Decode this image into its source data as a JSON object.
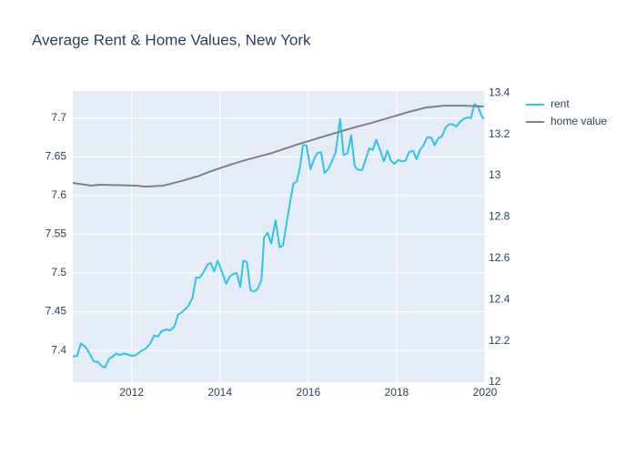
{
  "chart_data": {
    "type": "line",
    "title": "Average Rent & Home Values, New York",
    "xlim": [
      2010.67,
      2020
    ],
    "xticks": [
      2012,
      2014,
      2016,
      2018,
      2020
    ],
    "ylim": [
      7.359,
      7.735
    ],
    "yticks": [
      7.4,
      7.45,
      7.5,
      7.55,
      7.6,
      7.65,
      7.7
    ],
    "y2lim": [
      12,
      13.41
    ],
    "y2ticks": [
      12,
      12.2,
      12.4,
      12.6,
      12.8,
      13,
      13.2,
      13.4
    ],
    "grid": true,
    "legend": "top-right",
    "series": [
      {
        "name": "rent",
        "color": "#2ec4ea",
        "x": [
          2010.67,
          2010.77,
          2010.85,
          2010.95,
          2011.03,
          2011.14,
          2011.24,
          2011.32,
          2011.4,
          2011.49,
          2011.57,
          2011.65,
          2011.73,
          2011.82,
          2011.9,
          2012.0,
          2012.1,
          2012.21,
          2012.31,
          2012.41,
          2012.51,
          2012.6,
          2012.68,
          2012.78,
          2012.88,
          2012.97,
          2013.05,
          2013.13,
          2013.21,
          2013.29,
          2013.38,
          2013.46,
          2013.54,
          2013.62,
          2013.72,
          2013.79,
          2013.87,
          2013.95,
          2014.03,
          2014.14,
          2014.22,
          2014.3,
          2014.38,
          2014.46,
          2014.53,
          2014.61,
          2014.69,
          2014.77,
          2014.85,
          2014.94,
          2015.0,
          2015.08,
          2015.16,
          2015.26,
          2015.35,
          2015.43,
          2015.51,
          2015.59,
          2015.66,
          2015.74,
          2015.82,
          2015.88,
          2015.96,
          2016.05,
          2016.13,
          2016.21,
          2016.29,
          2016.37,
          2016.46,
          2016.54,
          2016.62,
          2016.72,
          2016.8,
          2016.89,
          2016.97,
          2017.05,
          2017.13,
          2017.22,
          2017.3,
          2017.38,
          2017.46,
          2017.54,
          2017.63,
          2017.71,
          2017.79,
          2017.87,
          2017.95,
          2018.04,
          2018.12,
          2018.2,
          2018.28,
          2018.37,
          2018.45,
          2018.53,
          2018.61,
          2018.69,
          2018.78,
          2018.86,
          2018.94,
          2019.02,
          2019.1,
          2019.19,
          2019.27,
          2019.35,
          2019.43,
          2019.52,
          2019.6,
          2019.68,
          2019.76,
          2019.84,
          2019.93,
          2019.97
        ],
        "values": [
          7.392,
          7.393,
          7.409,
          7.405,
          7.398,
          7.386,
          7.385,
          7.38,
          7.378,
          7.389,
          7.392,
          7.396,
          7.394,
          7.396,
          7.395,
          7.393,
          7.394,
          7.399,
          7.402,
          7.408,
          7.419,
          7.418,
          7.425,
          7.427,
          7.426,
          7.431,
          7.446,
          7.449,
          7.453,
          7.458,
          7.468,
          7.494,
          7.494,
          7.5,
          7.511,
          7.513,
          7.502,
          7.516,
          7.504,
          7.486,
          7.495,
          7.499,
          7.5,
          7.482,
          7.516,
          7.514,
          7.478,
          7.476,
          7.479,
          7.491,
          7.546,
          7.552,
          7.538,
          7.568,
          7.533,
          7.536,
          7.565,
          7.592,
          7.615,
          7.618,
          7.639,
          7.665,
          7.665,
          7.634,
          7.647,
          7.655,
          7.656,
          7.629,
          7.635,
          7.645,
          7.656,
          7.699,
          7.652,
          7.655,
          7.678,
          7.638,
          7.633,
          7.633,
          7.647,
          7.661,
          7.659,
          7.672,
          7.658,
          7.644,
          7.658,
          7.645,
          7.641,
          7.646,
          7.644,
          7.645,
          7.656,
          7.658,
          7.647,
          7.659,
          7.665,
          7.675,
          7.675,
          7.665,
          7.674,
          7.676,
          7.687,
          7.692,
          7.692,
          7.689,
          7.695,
          7.699,
          7.701,
          7.7,
          7.718,
          7.715,
          7.702,
          7.699
        ]
      },
      {
        "name": "home value",
        "color": "#7f7f88",
        "axis": "y2",
        "x": [
          2010.67,
          2011.08,
          2011.29,
          2012.1,
          2012.31,
          2012.72,
          2013.13,
          2013.54,
          2013.75,
          2014.16,
          2014.57,
          2015.18,
          2015.8,
          2016.41,
          2017.03,
          2017.44,
          2017.85,
          2018.26,
          2018.67,
          2019.08,
          2019.49,
          2019.97
        ],
        "values": [
          12.965,
          12.952,
          12.956,
          12.952,
          12.947,
          12.952,
          12.974,
          13.0,
          13.018,
          13.048,
          13.075,
          13.11,
          13.154,
          13.194,
          13.233,
          13.256,
          13.282,
          13.308,
          13.33,
          13.339,
          13.339,
          13.335
        ]
      }
    ]
  }
}
